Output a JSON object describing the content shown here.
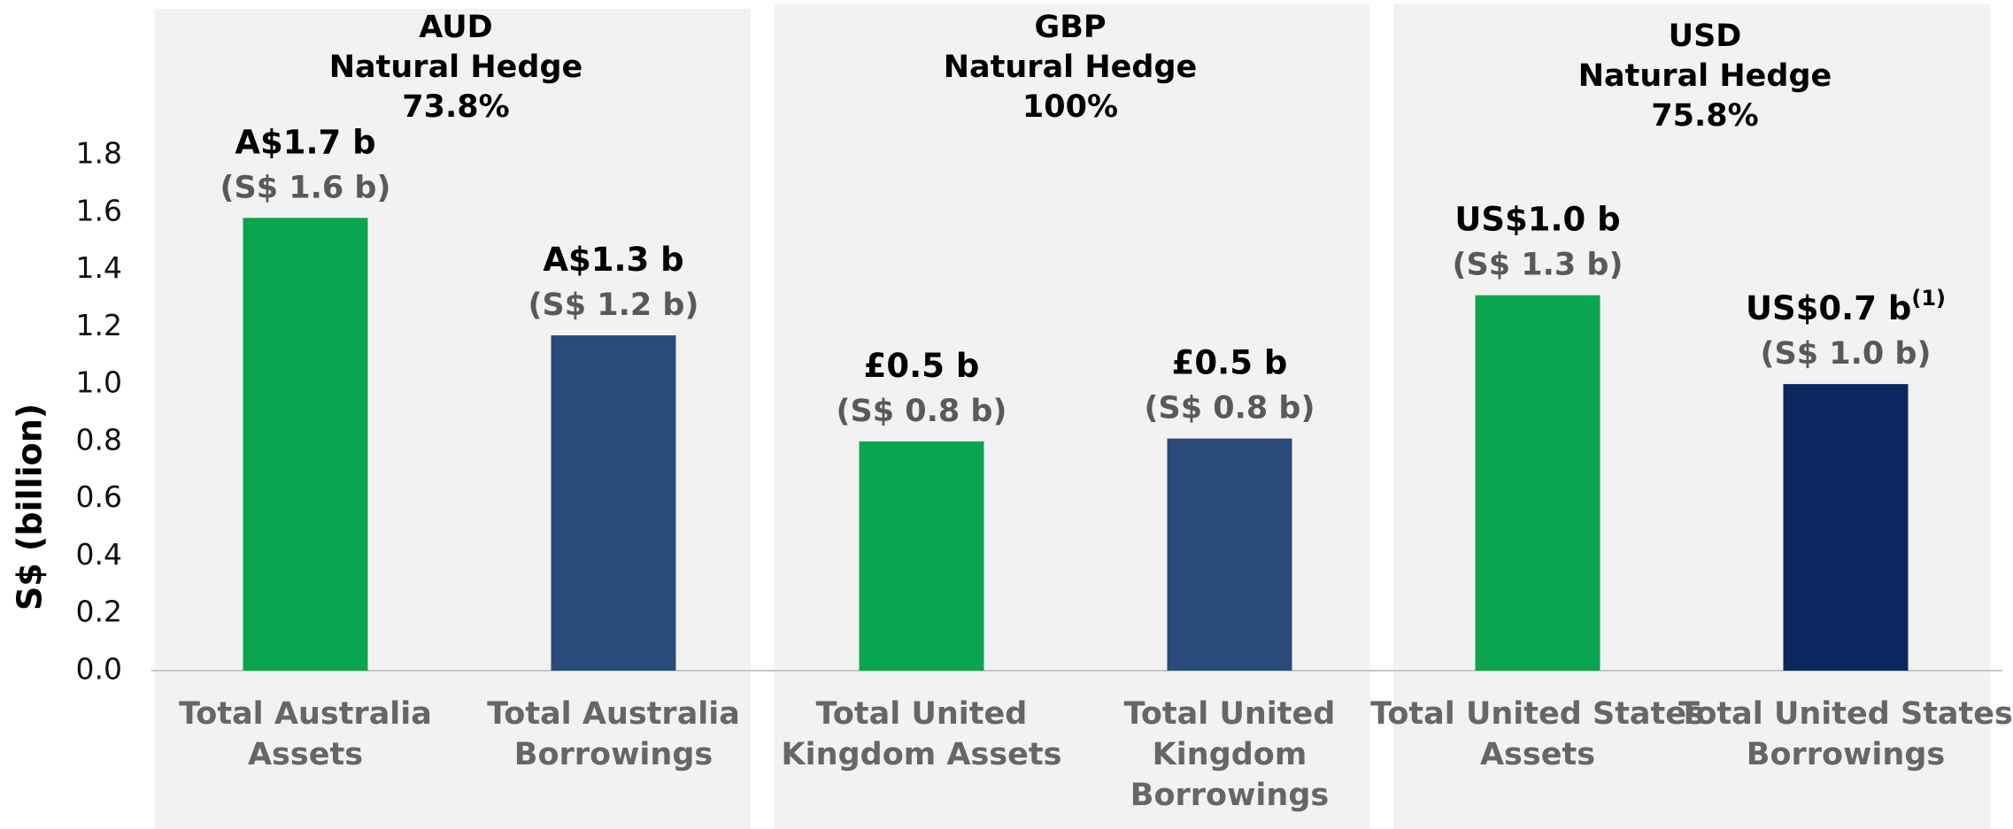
{
  "chart_data": {
    "type": "bar",
    "ylabel": "S$ (billion)",
    "groups": [
      {
        "currency": "AUD",
        "label": "Natural Hedge",
        "hedge": "73.8%"
      },
      {
        "currency": "GBP",
        "label": "Natural Hedge",
        "hedge": "100%"
      },
      {
        "currency": "USD",
        "label": "Natural Hedge",
        "hedge": "75.8%"
      }
    ],
    "categories": [
      [
        "Total Australia",
        "Assets"
      ],
      [
        "Total Australia",
        "Borrowings"
      ],
      [
        "Total United",
        "Kingdom Assets"
      ],
      [
        "Total United",
        "Kingdom",
        "Borrowings"
      ],
      [
        "Total United States",
        "Assets"
      ],
      [
        "Total United States",
        "Borrowings"
      ]
    ],
    "values": [
      1.58,
      1.17,
      0.8,
      0.81,
      1.31,
      1.0
    ],
    "value_labels": [
      "(S$ 1.6 b)",
      "(S$ 1.2 b)",
      "(S$ 0.8 b)",
      "(S$ 0.8 b)",
      "(S$ 1.3 b)",
      "(S$ 1.0 b)"
    ],
    "currency_labels": [
      {
        "text": "A$1.7 b"
      },
      {
        "text": "A$1.3 b"
      },
      {
        "text": "£0.5 b"
      },
      {
        "text": "£0.5 b"
      },
      {
        "text": "US$1.0 b"
      },
      {
        "text": "US$0.7 b",
        "superscript": "(1)"
      }
    ],
    "colors": [
      "#0ba550",
      "#284b7a",
      "#0ba550",
      "#284b7a",
      "#0ba550",
      "#0c2660"
    ],
    "ylim": [
      0,
      1.8
    ],
    "yticks": [
      {
        "value": 0,
        "label": "0.0"
      },
      0.2,
      0.4,
      0.6,
      0.8,
      {
        "value": 1,
        "label": "1.0"
      },
      1.2,
      1.4,
      1.6,
      1.8
    ],
    "grid": false
  }
}
